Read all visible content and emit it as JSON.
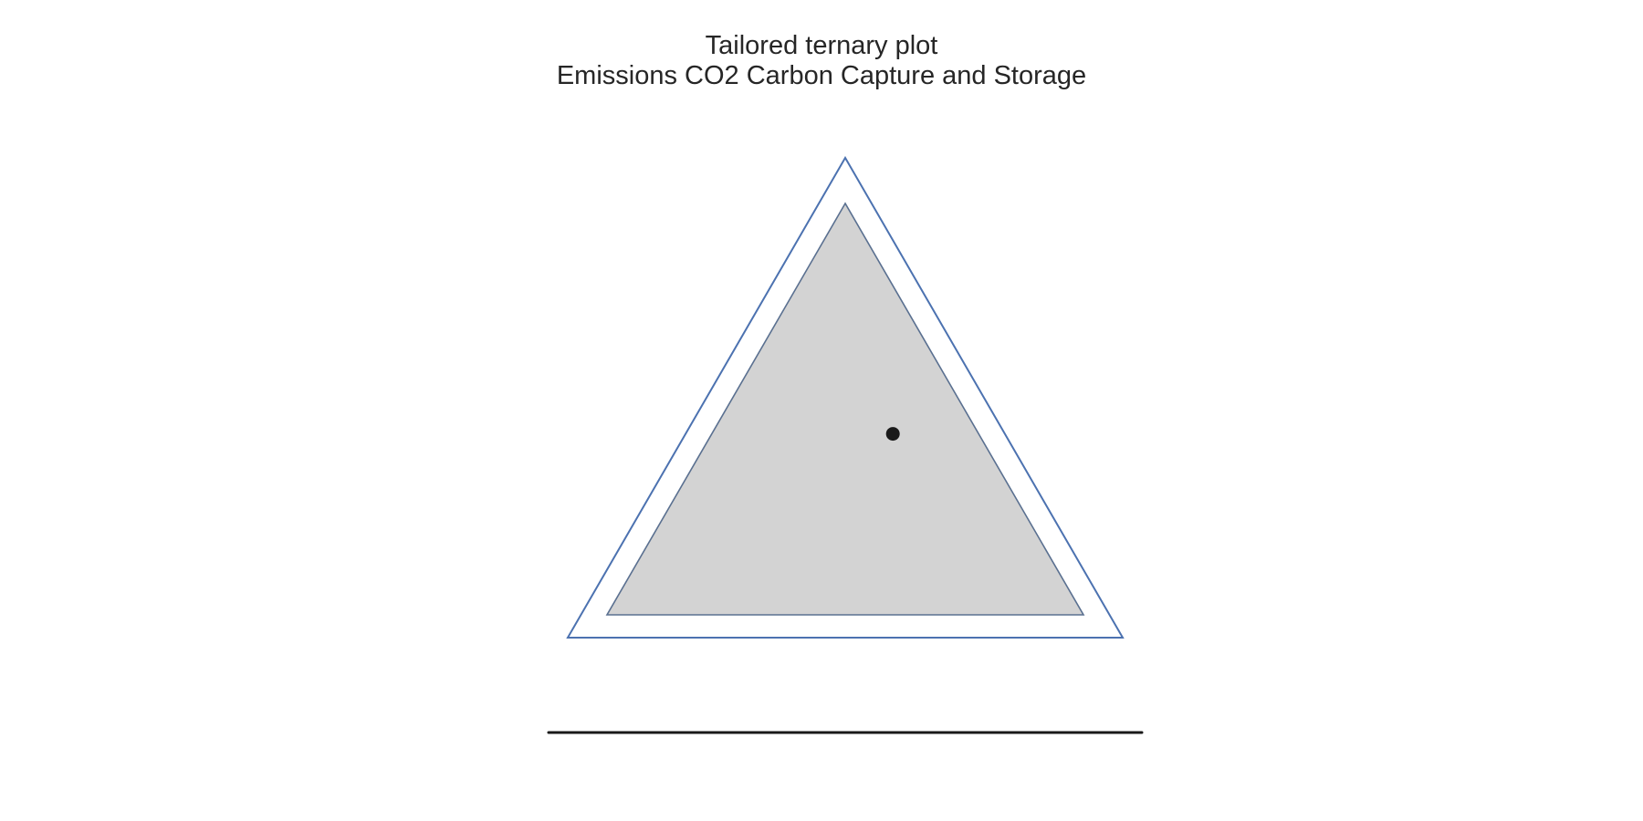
{
  "title": {
    "line1": "Tailored ternary plot",
    "line2": "Emissions CO2 Carbon Capture and Storage"
  },
  "chart_data": {
    "type": "scatter",
    "subtype": "ternary",
    "title": "Tailored ternary plot\nEmissions CO2 Carbon Capture and Storage",
    "axes": {
      "a_label": "",
      "b_label": "",
      "c_label": "",
      "ticks_shown": false,
      "grid": false
    },
    "region": {
      "shape": "triangle",
      "fill_color": "#d3d3d3",
      "inner_outline_color": "#5a7090",
      "outer_outline_color": "#4c72b0"
    },
    "points": [
      {
        "a": 0.44,
        "b": 0.38,
        "c": 0.18,
        "color": "#1a1a1a"
      }
    ],
    "colors": {
      "text": "#262626",
      "baseline": "#1a1a1a"
    }
  }
}
